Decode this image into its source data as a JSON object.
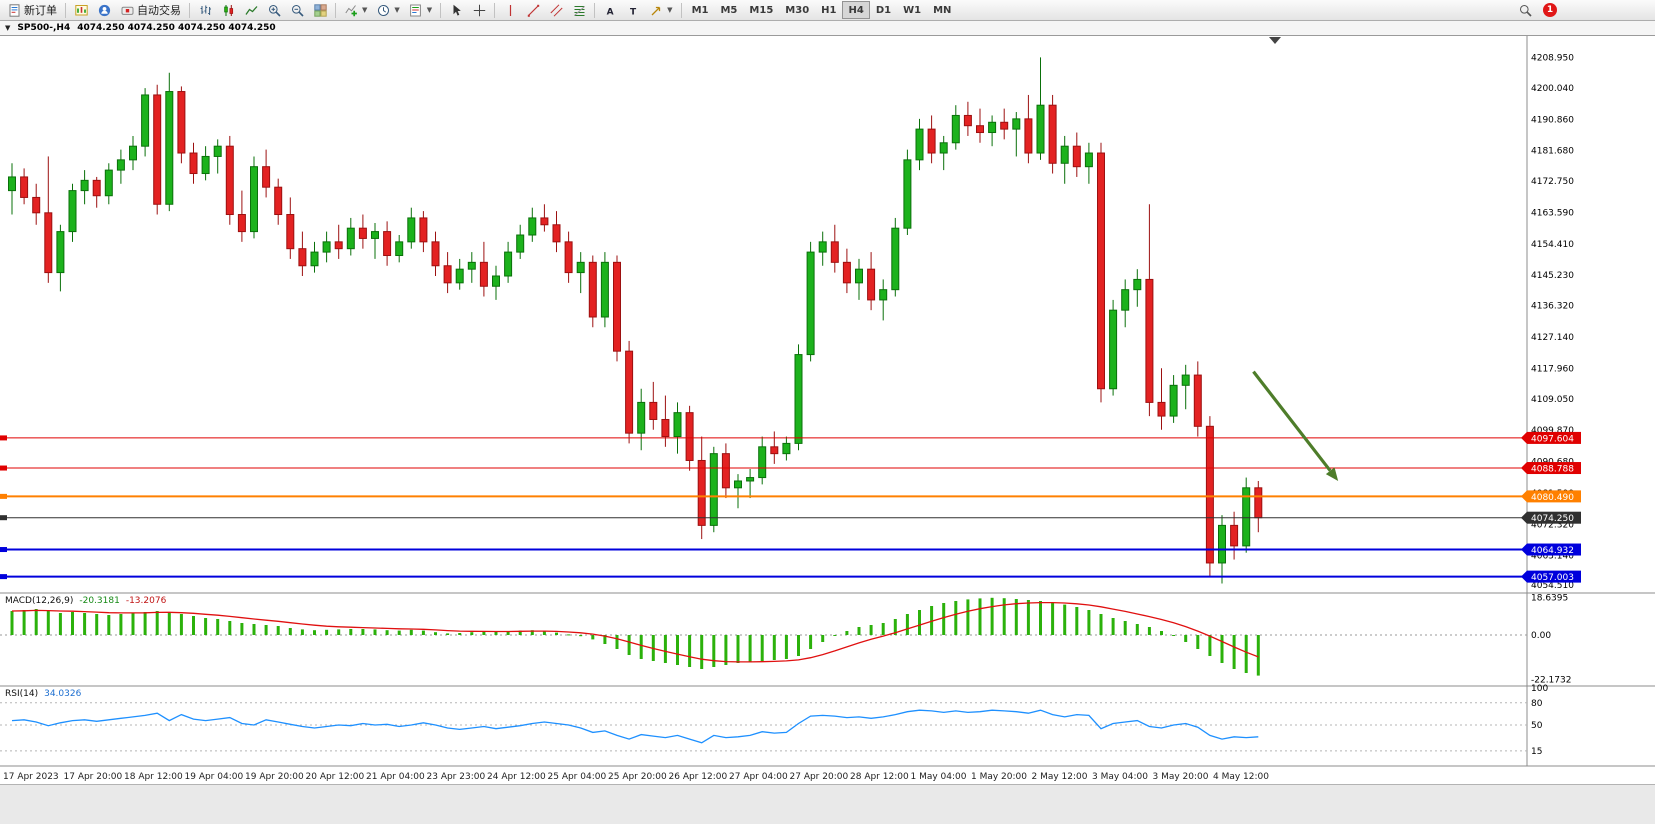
{
  "toolbar": {
    "new_order": "新订单",
    "autotrading": "自动交易",
    "timeframes": [
      "M1",
      "M5",
      "M15",
      "M30",
      "H1",
      "H4",
      "D1",
      "W1",
      "MN"
    ],
    "active_timeframe": "H4",
    "notification_badge": "1"
  },
  "title_bar": {
    "symbol_period": "SP500-,H4",
    "ohlc": "4074.250 4074.250 4074.250 4074.250"
  },
  "chart_data": {
    "type": "candlestick",
    "symbol": "SP500-",
    "timeframe": "H4",
    "price_range": [
      4052.5,
      4213.5
    ],
    "price_axis_labels": [
      "4208.950",
      "4200.040",
      "4190.860",
      "4181.680",
      "4172.750",
      "4163.590",
      "4154.410",
      "4145.230",
      "4136.320",
      "4127.140",
      "4117.960",
      "4109.050",
      "4099.870",
      "4090.680",
      "4081.500",
      "4072.320",
      "4063.140",
      "4054.510"
    ],
    "time_axis_labels": [
      "17 Apr 2023",
      "17 Apr 20:00",
      "18 Apr 12:00",
      "19 Apr 04:00",
      "19 Apr 20:00",
      "20 Apr 12:00",
      "21 Apr 04:00",
      "23 Apr 23:00",
      "24 Apr 12:00",
      "25 Apr 04:00",
      "25 Apr 20:00",
      "26 Apr 12:00",
      "27 Apr 04:00",
      "27 Apr 20:00",
      "28 Apr 12:00",
      "1 May 04:00",
      "1 May 20:00",
      "2 May 12:00",
      "3 May 04:00",
      "3 May 20:00",
      "4 May 12:00"
    ],
    "candles": [
      [
        4170,
        4178,
        4163,
        4174
      ],
      [
        4174,
        4176.5,
        4166,
        4168
      ],
      [
        4168,
        4172,
        4160,
        4163.5
      ],
      [
        4163.5,
        4180,
        4143,
        4146
      ],
      [
        4146,
        4160,
        4140.5,
        4158
      ],
      [
        4158,
        4172,
        4155,
        4170
      ],
      [
        4170,
        4176,
        4166,
        4173
      ],
      [
        4173,
        4174,
        4165,
        4168.5
      ],
      [
        4168.5,
        4178,
        4166,
        4176
      ],
      [
        4176,
        4182,
        4172,
        4179
      ],
      [
        4179,
        4186,
        4176,
        4183
      ],
      [
        4183,
        4200,
        4180,
        4198
      ],
      [
        4198,
        4201,
        4163,
        4166
      ],
      [
        4166,
        4204.5,
        4164,
        4199
      ],
      [
        4199,
        4200.5,
        4178,
        4181
      ],
      [
        4181,
        4184,
        4172,
        4175
      ],
      [
        4175,
        4183,
        4173,
        4180
      ],
      [
        4180,
        4185,
        4175,
        4183
      ],
      [
        4183,
        4186,
        4160,
        4163
      ],
      [
        4163,
        4170,
        4155,
        4158
      ],
      [
        4158,
        4180,
        4156,
        4177
      ],
      [
        4177,
        4182,
        4168,
        4171
      ],
      [
        4171,
        4173.5,
        4160,
        4163
      ],
      [
        4163,
        4168,
        4150,
        4153
      ],
      [
        4153,
        4158,
        4145,
        4148
      ],
      [
        4148,
        4155,
        4146,
        4152
      ],
      [
        4152,
        4158,
        4149,
        4155
      ],
      [
        4155,
        4160,
        4150,
        4153
      ],
      [
        4153,
        4162,
        4151,
        4159
      ],
      [
        4159,
        4163,
        4153,
        4156
      ],
      [
        4156,
        4160.5,
        4150,
        4158
      ],
      [
        4158,
        4161,
        4148,
        4151
      ],
      [
        4151,
        4157,
        4149,
        4155
      ],
      [
        4155,
        4165,
        4153,
        4162
      ],
      [
        4162,
        4164,
        4152,
        4155
      ],
      [
        4155,
        4158,
        4145,
        4148
      ],
      [
        4148,
        4152,
        4140,
        4143
      ],
      [
        4143,
        4150,
        4141,
        4147
      ],
      [
        4147,
        4152,
        4143,
        4149
      ],
      [
        4149,
        4155,
        4139,
        4142
      ],
      [
        4142,
        4148,
        4138,
        4145
      ],
      [
        4145,
        4155,
        4143,
        4152
      ],
      [
        4152,
        4160,
        4150,
        4157
      ],
      [
        4157,
        4165,
        4155,
        4162
      ],
      [
        4162,
        4166,
        4158,
        4160
      ],
      [
        4160,
        4164,
        4152,
        4155
      ],
      [
        4155,
        4158,
        4143,
        4146
      ],
      [
        4146,
        4152,
        4140,
        4149
      ],
      [
        4149,
        4151,
        4130,
        4133
      ],
      [
        4133,
        4152,
        4130,
        4149
      ],
      [
        4149,
        4151,
        4120,
        4123
      ],
      [
        4123,
        4126,
        4096,
        4099
      ],
      [
        4099,
        4112,
        4094,
        4108
      ],
      [
        4108,
        4114,
        4100,
        4103
      ],
      [
        4103,
        4110,
        4095,
        4098
      ],
      [
        4098,
        4108,
        4093,
        4105
      ],
      [
        4105,
        4107,
        4088,
        4091
      ],
      [
        4091,
        4098,
        4068,
        4072
      ],
      [
        4072,
        4095,
        4070,
        4093
      ],
      [
        4093,
        4096,
        4080,
        4083
      ],
      [
        4083,
        4087,
        4077,
        4085
      ],
      [
        4085,
        4088.5,
        4080,
        4086
      ],
      [
        4086,
        4098,
        4084,
        4095
      ],
      [
        4095,
        4099.5,
        4090,
        4093
      ],
      [
        4093,
        4098,
        4091,
        4096
      ],
      [
        4096,
        4125,
        4094,
        4122
      ],
      [
        4122,
        4155,
        4120,
        4152
      ],
      [
        4152,
        4158,
        4148,
        4155
      ],
      [
        4155,
        4160,
        4146,
        4149
      ],
      [
        4149,
        4153,
        4140,
        4143
      ],
      [
        4143,
        4150,
        4138,
        4147
      ],
      [
        4147,
        4152,
        4135,
        4138
      ],
      [
        4138,
        4144,
        4132,
        4141
      ],
      [
        4141,
        4162,
        4139,
        4159
      ],
      [
        4159,
        4182,
        4157,
        4179
      ],
      [
        4179,
        4191,
        4176,
        4188
      ],
      [
        4188,
        4192,
        4178,
        4181
      ],
      [
        4181,
        4186,
        4176,
        4184
      ],
      [
        4184,
        4195,
        4182,
        4192
      ],
      [
        4192,
        4196,
        4186,
        4189
      ],
      [
        4189,
        4194,
        4184,
        4187
      ],
      [
        4187,
        4192,
        4183,
        4190
      ],
      [
        4190,
        4194,
        4185,
        4188
      ],
      [
        4188,
        4193,
        4180,
        4191
      ],
      [
        4191,
        4198,
        4178,
        4181
      ],
      [
        4181,
        4209,
        4179,
        4195
      ],
      [
        4195,
        4198,
        4175,
        4178
      ],
      [
        4178,
        4186,
        4172,
        4183
      ],
      [
        4183,
        4187,
        4174,
        4177
      ],
      [
        4177,
        4184,
        4172,
        4181
      ],
      [
        4181,
        4184,
        4108,
        4112
      ],
      [
        4112,
        4138,
        4110,
        4135
      ],
      [
        4135,
        4144,
        4130,
        4141
      ],
      [
        4141,
        4147,
        4136,
        4144
      ],
      [
        4144,
        4166,
        4104,
        4108
      ],
      [
        4108,
        4118,
        4100,
        4104
      ],
      [
        4104,
        4116,
        4102,
        4113
      ],
      [
        4113,
        4119,
        4106,
        4116
      ],
      [
        4116,
        4120,
        4098,
        4101
      ],
      [
        4101,
        4104,
        4057,
        4061
      ],
      [
        4061,
        4075,
        4055,
        4072
      ],
      [
        4072,
        4076,
        4062,
        4066
      ],
      [
        4066,
        4086,
        4064,
        4083
      ],
      [
        4083,
        4085,
        4070,
        4074.25
      ]
    ],
    "hlines": [
      {
        "price": 4097.604,
        "label": "4097.604",
        "color": "#e00000",
        "width": 1
      },
      {
        "price": 4088.788,
        "label": "4088.788",
        "color": "#e00000",
        "width": 1
      },
      {
        "price": 4080.49,
        "label": "4080.490",
        "color": "#ff8000",
        "width": 2
      },
      {
        "price": 4074.25,
        "label": "4074.250",
        "color": "#303030",
        "width": 1
      },
      {
        "price": 4064.932,
        "label": "4064.932",
        "color": "#0000dc",
        "width": 2
      },
      {
        "price": 4057.003,
        "label": "4057.003",
        "color": "#0000dc",
        "width": 2
      }
    ],
    "trend_arrow": {
      "from_bar": 102.6,
      "from_price": 4117,
      "to_bar": 109.6,
      "to_price": 4085
    },
    "colors": {
      "up": "#1cb21c",
      "up_border": "#0a700a",
      "down": "#e32222",
      "down_border": "#9c1010",
      "macd_hist": "#2bb10b",
      "macd_signal": "#e01010",
      "rsi_line": "#1e90ff",
      "arrow_green": "#4e7d2a"
    },
    "subwindows": {
      "macd": {
        "label": "MACD(12,26,9)",
        "value_main": "-20.3181",
        "value_signal": "-13.2076",
        "axis_labels": [
          "18.6395",
          "0.00",
          "-22.1732"
        ],
        "range": [
          -24.5,
          20.5
        ],
        "histogram": [
          12,
          12.5,
          13,
          12,
          11,
          11.5,
          11,
          10.5,
          10,
          10.5,
          11,
          11.5,
          12,
          11.5,
          10.5,
          9.5,
          8.5,
          8,
          7,
          6,
          5.5,
          5,
          4.5,
          3.5,
          2.8,
          2.4,
          2.6,
          2.8,
          3,
          3,
          2.8,
          2.4,
          2.2,
          2.6,
          2.2,
          1.4,
          0.8,
          1,
          1.4,
          1.6,
          1.5,
          1.8,
          2.2,
          2.4,
          2,
          1.2,
          0.3,
          -0.6,
          -2.2,
          -4.5,
          -7,
          -10,
          -12,
          -13,
          -14,
          -15,
          -16,
          -17,
          -16,
          -15,
          -14,
          -13.5,
          -13,
          -12.5,
          -12,
          -10.5,
          -7,
          -3.5,
          -0.5,
          2,
          4,
          5,
          6,
          8,
          10.5,
          12.5,
          14.5,
          16,
          17,
          17.8,
          18.3,
          18.6,
          18.4,
          18,
          17.5,
          17,
          16.2,
          15.2,
          14,
          12.5,
          10.5,
          8.5,
          7,
          5.5,
          4,
          2,
          -0.5,
          -3.5,
          -7,
          -10.5,
          -14,
          -17,
          -19,
          -20.3
        ]
      },
      "rsi": {
        "label": "RSI(14)",
        "value": "34.0326",
        "axis_labels": [
          "100",
          "80",
          "50",
          "15"
        ],
        "levels": [
          80,
          50,
          15
        ],
        "range": [
          0,
          100
        ],
        "values": [
          56,
          57,
          54,
          49,
          53,
          56,
          57,
          55,
          57,
          59,
          61,
          63,
          66,
          56,
          64,
          58,
          56,
          58,
          60,
          52,
          50,
          57,
          54,
          51,
          48,
          46,
          48,
          50,
          49,
          52,
          50,
          51,
          48,
          50,
          53,
          50,
          46,
          44,
          46,
          48,
          45,
          47,
          49,
          52,
          54,
          52,
          50,
          46,
          40,
          42,
          36,
          31,
          37,
          35,
          33,
          36,
          31,
          26,
          36,
          33,
          34,
          36,
          41,
          39,
          40,
          52,
          62,
          63,
          62,
          60,
          61,
          59,
          61,
          64,
          68,
          70,
          69,
          67,
          69,
          67,
          68,
          70,
          69,
          68,
          66,
          70,
          64,
          61,
          64,
          63,
          45,
          52,
          54,
          56,
          48,
          46,
          50,
          52,
          47,
          36,
          31,
          34,
          33,
          34
        ]
      }
    }
  }
}
